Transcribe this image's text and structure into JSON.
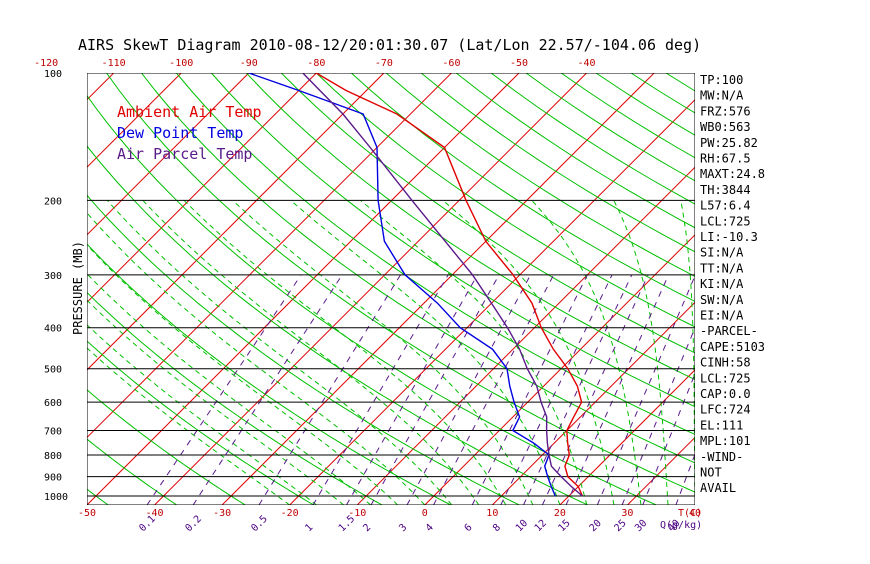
{
  "chart_data": {
    "type": "line",
    "title": "AIRS SkewT Diagram 2010-08-12/20:01:30.07 (Lat/Lon 22.57/-104.06 deg)",
    "ylabel": "PRESSURE (MB)",
    "xlabel": "T(C)",
    "mixing_ratio_unit": "Q(g/kg)",
    "top_temperature_ticks": [
      "-120",
      "-110",
      "-100",
      "-90",
      "-80",
      "-70",
      "-60",
      "-50",
      "-40"
    ],
    "bottom_temperature_ticks": [
      "-50",
      "-40",
      "-30",
      "-20",
      "-10",
      "0",
      "10",
      "20",
      "30",
      "40"
    ],
    "pressure_ticks": [
      "100",
      "200",
      "300",
      "400",
      "500",
      "600",
      "700",
      "800",
      "900",
      "1000"
    ],
    "mixing_ratio_ticks": [
      "0.1",
      "0.2",
      "0.5",
      "1",
      "1.5",
      "2",
      "3",
      "4",
      "6",
      "8",
      "10",
      "12",
      "15",
      "20",
      "25",
      "30",
      "40"
    ],
    "legend": [
      {
        "label": "Ambient Air Temp",
        "color": "#e00000"
      },
      {
        "label": "Dew Point Temp",
        "color": "#0000e0"
      },
      {
        "label": "Air Parcel Temp",
        "color": "#5a1a8a"
      }
    ],
    "series": [
      {
        "name": "Ambient Air Temp",
        "color": "#e00000",
        "points": [
          [
            1000,
            22
          ],
          [
            950,
            20
          ],
          [
            900,
            17
          ],
          [
            850,
            15
          ],
          [
            800,
            14
          ],
          [
            750,
            12
          ],
          [
            700,
            10
          ],
          [
            650,
            9
          ],
          [
            600,
            8
          ],
          [
            550,
            5
          ],
          [
            500,
            1
          ],
          [
            450,
            -4
          ],
          [
            400,
            -9
          ],
          [
            350,
            -14
          ],
          [
            300,
            -21
          ],
          [
            250,
            -30
          ],
          [
            200,
            -39
          ],
          [
            150,
            -50
          ],
          [
            125,
            -62
          ],
          [
            110,
            -73
          ],
          [
            100,
            -80
          ]
        ]
      },
      {
        "name": "Dew Point Temp",
        "color": "#0000e0",
        "points": [
          [
            1000,
            18
          ],
          [
            950,
            16
          ],
          [
            900,
            14
          ],
          [
            850,
            12
          ],
          [
            800,
            11
          ],
          [
            750,
            7
          ],
          [
            700,
            2
          ],
          [
            650,
            1
          ],
          [
            600,
            -2
          ],
          [
            550,
            -5
          ],
          [
            500,
            -8
          ],
          [
            450,
            -13
          ],
          [
            400,
            -21
          ],
          [
            350,
            -28
          ],
          [
            300,
            -37
          ],
          [
            250,
            -45
          ],
          [
            200,
            -52
          ],
          [
            150,
            -60
          ],
          [
            125,
            -67
          ],
          [
            110,
            -80
          ],
          [
            100,
            -90
          ]
        ]
      },
      {
        "name": "Air Parcel Temp",
        "color": "#5a1a8a",
        "points": [
          [
            1000,
            22
          ],
          [
            950,
            19
          ],
          [
            900,
            16
          ],
          [
            850,
            13
          ],
          [
            800,
            11
          ],
          [
            750,
            9
          ],
          [
            700,
            7
          ],
          [
            650,
            5
          ],
          [
            600,
            2
          ],
          [
            550,
            -1
          ],
          [
            500,
            -5
          ],
          [
            450,
            -9
          ],
          [
            400,
            -14
          ],
          [
            350,
            -20
          ],
          [
            300,
            -27
          ],
          [
            250,
            -36
          ],
          [
            200,
            -47
          ],
          [
            150,
            -61
          ],
          [
            125,
            -70
          ],
          [
            100,
            -82
          ]
        ]
      }
    ],
    "indices": [
      "TP:100",
      "MW:N/A",
      "FRZ:576",
      "WB0:563",
      "PW:25.82",
      "RH:67.5",
      "MAXT:24.8",
      "TH:3844",
      "L57:6.4",
      "LCL:725",
      "LI:-10.3",
      "SI:N/A",
      "TT:N/A",
      "KI:N/A",
      "SW:N/A",
      "EI:N/A",
      "-PARCEL-",
      "CAPE:5103",
      "CINH:58",
      "LCL:725",
      "CAP:0.0",
      "LFC:724",
      "EL:111",
      "MPL:101",
      "-WIND-",
      "NOT",
      "AVAIL"
    ],
    "colors": {
      "isotherm": "#e00000",
      "dry_adiabat": "#00c000",
      "moist_adiabat": "#00c000",
      "mixing_ratio": "#5a1a8a",
      "cape_hatch": "#5a1a8a",
      "isobar": "#000000"
    }
  }
}
